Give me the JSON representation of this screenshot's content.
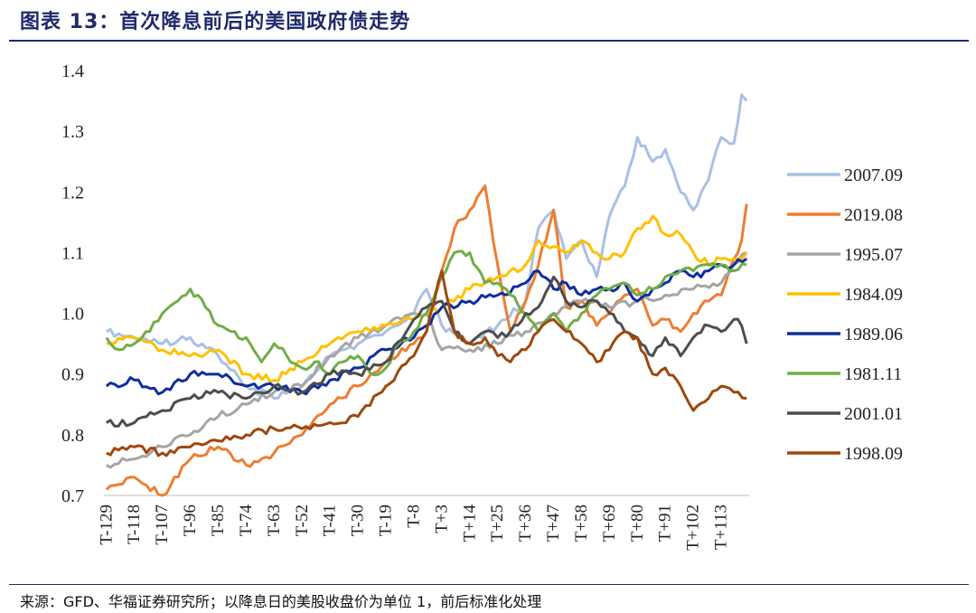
{
  "header": {
    "title": "图表 13：首次降息前后的美国政府债走势"
  },
  "footer": {
    "source": "来源：GFD、华福证券研究所；以降息日的美股收盘价为单位 1，前后标准化处理"
  },
  "chart_data": {
    "type": "line",
    "title": "首次降息前后的美国政府债走势",
    "xlabel": "",
    "ylabel": "",
    "ylim": [
      0.7,
      1.4
    ],
    "yticks": [
      0.7,
      0.8,
      0.9,
      1.0,
      1.1,
      1.2,
      1.3,
      1.4
    ],
    "ytick_labels": [
      "0.7",
      "0.8",
      "0.9",
      "1.0",
      "1.1",
      "1.2",
      "1.3",
      "1.4"
    ],
    "xlim": [
      -130,
      124
    ],
    "xticks": [
      -129,
      -118,
      -107,
      -96,
      -85,
      -74,
      -63,
      -52,
      -41,
      -30,
      -19,
      -8,
      3,
      14,
      25,
      36,
      47,
      58,
      69,
      80,
      91,
      102,
      113
    ],
    "xtick_labels": [
      "T-129",
      "T-118",
      "T-107",
      "T-96",
      "T-85",
      "T-74",
      "T-63",
      "T-52",
      "T-41",
      "T-30",
      "T-19",
      "T-8",
      "T+3",
      "T+14",
      "T+25",
      "T+36",
      "T+47",
      "T+58",
      "T+69",
      "T+80",
      "T+91",
      "T+102",
      "T+113"
    ],
    "legend_position": "right",
    "series": [
      {
        "name": "2007.09",
        "color": "#a9c0e4",
        "x": [
          -129,
          -118,
          -107,
          -96,
          -85,
          -74,
          -63,
          -52,
          -41,
          -30,
          -19,
          -8,
          -3,
          3,
          14,
          25,
          36,
          41,
          47,
          52,
          58,
          64,
          69,
          75,
          80,
          86,
          91,
          97,
          102,
          108,
          113,
          118,
          121,
          123
        ],
        "values": [
          0.97,
          0.96,
          0.95,
          0.96,
          0.93,
          0.88,
          0.86,
          0.88,
          0.93,
          0.95,
          0.97,
          1.0,
          1.04,
          0.98,
          0.95,
          0.98,
          1.02,
          1.14,
          1.17,
          1.09,
          1.12,
          1.06,
          1.16,
          1.21,
          1.29,
          1.25,
          1.27,
          1.2,
          1.17,
          1.22,
          1.29,
          1.28,
          1.36,
          1.35
        ]
      },
      {
        "name": "2019.08",
        "color": "#ed7d31",
        "x": [
          -129,
          -118,
          -107,
          -96,
          -85,
          -74,
          -63,
          -52,
          -41,
          -30,
          -19,
          -8,
          -3,
          3,
          8,
          14,
          20,
          25,
          30,
          36,
          41,
          47,
          52,
          58,
          64,
          69,
          75,
          80,
          86,
          91,
          97,
          102,
          108,
          113,
          118,
          121,
          123
        ],
        "values": [
          0.71,
          0.73,
          0.7,
          0.76,
          0.78,
          0.75,
          0.77,
          0.8,
          0.85,
          0.88,
          0.92,
          0.95,
          0.97,
          1.07,
          1.14,
          1.17,
          1.21,
          1.08,
          0.97,
          1.02,
          1.08,
          1.17,
          1.01,
          1.02,
          0.98,
          1.0,
          1.03,
          1.04,
          0.98,
          0.99,
          0.97,
          1.0,
          1.02,
          1.03,
          1.09,
          1.12,
          1.18
        ]
      },
      {
        "name": "1995.07",
        "color": "#a5a5a5",
        "x": [
          -129,
          -118,
          -107,
          -96,
          -85,
          -74,
          -63,
          -52,
          -41,
          -30,
          -19,
          -8,
          -3,
          3,
          14,
          25,
          36,
          47,
          58,
          69,
          80,
          91,
          102,
          113,
          118,
          123
        ],
        "values": [
          0.75,
          0.76,
          0.78,
          0.8,
          0.83,
          0.85,
          0.87,
          0.88,
          0.93,
          0.96,
          0.98,
          1.0,
          1.0,
          0.94,
          0.94,
          0.95,
          0.97,
          1.0,
          1.02,
          1.01,
          1.02,
          1.03,
          1.04,
          1.05,
          1.08,
          1.1
        ]
      },
      {
        "name": "1984.09",
        "color": "#ffc000",
        "x": [
          -129,
          -118,
          -107,
          -96,
          -85,
          -74,
          -63,
          -52,
          -41,
          -30,
          -19,
          -8,
          -3,
          3,
          14,
          25,
          36,
          41,
          47,
          52,
          58,
          64,
          69,
          75,
          80,
          86,
          91,
          97,
          102,
          108,
          113,
          118,
          123
        ],
        "values": [
          0.95,
          0.96,
          0.94,
          0.93,
          0.94,
          0.9,
          0.89,
          0.92,
          0.95,
          0.97,
          0.98,
          0.99,
          1.0,
          1.01,
          1.04,
          1.06,
          1.08,
          1.12,
          1.11,
          1.1,
          1.12,
          1.1,
          1.09,
          1.1,
          1.14,
          1.16,
          1.13,
          1.13,
          1.1,
          1.08,
          1.09,
          1.09,
          1.1
        ]
      },
      {
        "name": "1989.06",
        "color": "#0f2e9e",
        "x": [
          -129,
          -118,
          -107,
          -96,
          -85,
          -74,
          -63,
          -52,
          -41,
          -30,
          -19,
          -8,
          -3,
          3,
          14,
          25,
          36,
          41,
          47,
          52,
          58,
          64,
          69,
          75,
          80,
          86,
          91,
          97,
          102,
          108,
          113,
          118,
          123
        ],
        "values": [
          0.88,
          0.89,
          0.87,
          0.9,
          0.9,
          0.88,
          0.88,
          0.87,
          0.89,
          0.91,
          0.94,
          0.96,
          0.98,
          1.01,
          1.02,
          1.03,
          1.05,
          1.07,
          1.04,
          1.05,
          1.03,
          1.04,
          1.04,
          1.05,
          1.02,
          1.04,
          1.05,
          1.07,
          1.06,
          1.07,
          1.08,
          1.08,
          1.09
        ]
      },
      {
        "name": "1981.11",
        "color": "#70ad47",
        "x": [
          -129,
          -124,
          -118,
          -112,
          -107,
          -101,
          -96,
          -90,
          -85,
          -80,
          -74,
          -68,
          -63,
          -58,
          -52,
          -47,
          -41,
          -36,
          -30,
          -25,
          -19,
          -14,
          -8,
          -3,
          3,
          8,
          14,
          20,
          25,
          30,
          36,
          41,
          47,
          52,
          58,
          64,
          69,
          75,
          80,
          86,
          91,
          97,
          102,
          108,
          113,
          118,
          123
        ],
        "values": [
          0.96,
          0.94,
          0.95,
          0.97,
          1.0,
          1.02,
          1.04,
          1.01,
          0.98,
          0.97,
          0.96,
          0.92,
          0.95,
          0.93,
          0.91,
          0.92,
          0.9,
          0.92,
          0.93,
          0.9,
          0.91,
          0.95,
          0.97,
          1.0,
          1.06,
          1.1,
          1.1,
          1.05,
          1.05,
          1.03,
          1.0,
          0.97,
          1.0,
          0.97,
          1.0,
          1.03,
          1.04,
          1.05,
          1.03,
          1.04,
          1.06,
          1.07,
          1.07,
          1.08,
          1.08,
          1.07,
          1.08
        ]
      },
      {
        "name": "2001.01",
        "color": "#4d4d4d",
        "x": [
          -129,
          -118,
          -107,
          -96,
          -85,
          -74,
          -63,
          -52,
          -41,
          -30,
          -19,
          -8,
          -3,
          3,
          8,
          14,
          20,
          25,
          30,
          36,
          41,
          47,
          52,
          58,
          64,
          69,
          75,
          80,
          86,
          91,
          97,
          102,
          108,
          113,
          118,
          121,
          123
        ],
        "values": [
          0.82,
          0.82,
          0.84,
          0.86,
          0.87,
          0.86,
          0.88,
          0.87,
          0.9,
          0.9,
          0.92,
          0.99,
          1.01,
          1.02,
          0.97,
          0.95,
          0.97,
          0.96,
          0.97,
          1.0,
          1.01,
          1.06,
          1.02,
          1.01,
          1.02,
          1.0,
          0.97,
          0.96,
          0.93,
          0.96,
          0.93,
          0.96,
          0.98,
          0.97,
          0.99,
          0.98,
          0.95
        ]
      },
      {
        "name": "1998.09",
        "color": "#9e480e",
        "x": [
          -129,
          -118,
          -107,
          -96,
          -85,
          -74,
          -63,
          -52,
          -41,
          -30,
          -19,
          -8,
          -3,
          3,
          8,
          14,
          20,
          25,
          30,
          36,
          41,
          47,
          52,
          58,
          64,
          69,
          75,
          80,
          86,
          91,
          97,
          102,
          108,
          113,
          118,
          123
        ],
        "values": [
          0.77,
          0.78,
          0.77,
          0.78,
          0.79,
          0.8,
          0.81,
          0.81,
          0.82,
          0.83,
          0.88,
          0.93,
          0.97,
          1.07,
          0.97,
          0.95,
          0.96,
          0.93,
          0.92,
          0.94,
          0.97,
          0.99,
          0.97,
          0.95,
          0.92,
          0.94,
          0.97,
          0.96,
          0.9,
          0.91,
          0.88,
          0.84,
          0.86,
          0.88,
          0.87,
          0.86
        ]
      }
    ]
  }
}
